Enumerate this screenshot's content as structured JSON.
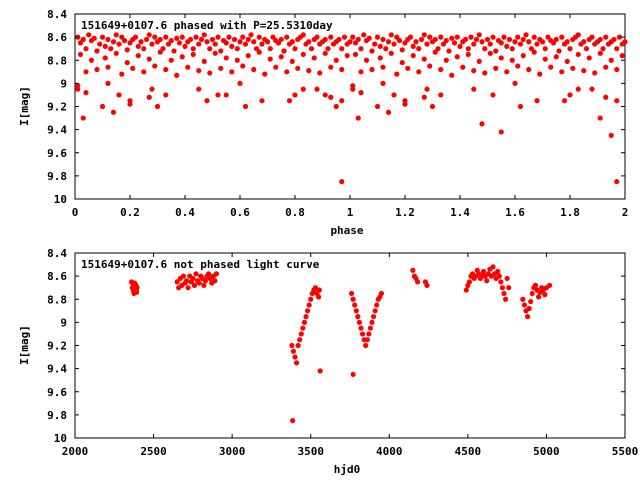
{
  "chart_data": [
    {
      "type": "scatter",
      "title": "151649+0107.6 phased with P=25.5310day",
      "xlabel": "phase",
      "ylabel": "I[mag]",
      "xlim": [
        0,
        2
      ],
      "ylim": [
        8.4,
        10
      ],
      "y_inverted": true,
      "x_ticks": [
        0,
        0.2,
        0.4,
        0.6,
        0.8,
        1,
        1.2,
        1.4,
        1.6,
        1.8,
        2
      ],
      "y_ticks": [
        8.4,
        8.6,
        8.8,
        9,
        9.2,
        9.4,
        9.6,
        9.8,
        10
      ],
      "grid": false,
      "legend": "none",
      "marker": "filled-circle",
      "color": "#ff0000",
      "series": [
        {
          "x": [
            0.01,
            0.02,
            0.03,
            0.04,
            0.05,
            0.06,
            0.07,
            0.08,
            0.09,
            0.1,
            0.11,
            0.12,
            0.13,
            0.14,
            0.15,
            0.16,
            0.17,
            0.18,
            0.19,
            0.2,
            0.21,
            0.22,
            0.23,
            0.24,
            0.25,
            0.26,
            0.27,
            0.28,
            0.29,
            0.3,
            0.31,
            0.32,
            0.33,
            0.34,
            0.35,
            0.36,
            0.37,
            0.38,
            0.39,
            0.4,
            0.41,
            0.42,
            0.43,
            0.44,
            0.45,
            0.46,
            0.47,
            0.48,
            0.49,
            0.5,
            0.51,
            0.52,
            0.53,
            0.54,
            0.55,
            0.56,
            0.57,
            0.58,
            0.59,
            0.6,
            0.61,
            0.62,
            0.63,
            0.64,
            0.65,
            0.66,
            0.67,
            0.68,
            0.69,
            0.7,
            0.71,
            0.72,
            0.73,
            0.74,
            0.75,
            0.76,
            0.77,
            0.78,
            0.79,
            0.8,
            0.81,
            0.82,
            0.83,
            0.84,
            0.85,
            0.86,
            0.87,
            0.88,
            0.89,
            0.9,
            0.91,
            0.92,
            0.93,
            0.94,
            0.95,
            0.96,
            0.97,
            0.98,
            0.99,
            1.0,
            0.02,
            0.06,
            0.11,
            0.15,
            0.19,
            0.23,
            0.27,
            0.31,
            0.35,
            0.39,
            0.43,
            0.47,
            0.51,
            0.55,
            0.59,
            0.63,
            0.67,
            0.71,
            0.75,
            0.79,
            0.83,
            0.87,
            0.91,
            0.95,
            0.99,
            0.04,
            0.08,
            0.12,
            0.17,
            0.21,
            0.25,
            0.29,
            0.33,
            0.37,
            0.41,
            0.45,
            0.49,
            0.53,
            0.57,
            0.61,
            0.65,
            0.69,
            0.73,
            0.77,
            0.81,
            0.85,
            0.89,
            0.93,
            0.97,
            0.01,
            0.03,
            0.12,
            0.16,
            0.2,
            0.28,
            0.33,
            0.45,
            0.52,
            0.6,
            0.68,
            0.8,
            0.88,
            0.93,
            0.97,
            0.01,
            0.04,
            0.1,
            0.14,
            0.2,
            0.27,
            0.3,
            0.48,
            0.55,
            0.62,
            0.78,
            0.83,
            0.91,
            0.95,
            0.97,
            1.01,
            1.02,
            1.03,
            1.04,
            1.05,
            1.06,
            1.07,
            1.08,
            1.09,
            1.1,
            1.11,
            1.12,
            1.13,
            1.14,
            1.15,
            1.16,
            1.17,
            1.18,
            1.19,
            1.2,
            1.21,
            1.22,
            1.23,
            1.24,
            1.25,
            1.26,
            1.27,
            1.28,
            1.29,
            1.3,
            1.31,
            1.32,
            1.33,
            1.34,
            1.35,
            1.36,
            1.37,
            1.38,
            1.39,
            1.4,
            1.41,
            1.42,
            1.43,
            1.44,
            1.45,
            1.46,
            1.47,
            1.48,
            1.49,
            1.5,
            1.51,
            1.52,
            1.53,
            1.54,
            1.55,
            1.56,
            1.57,
            1.58,
            1.59,
            1.6,
            1.61,
            1.62,
            1.63,
            1.64,
            1.65,
            1.66,
            1.67,
            1.68,
            1.69,
            1.7,
            1.71,
            1.72,
            1.73,
            1.74,
            1.75,
            1.76,
            1.77,
            1.78,
            1.79,
            1.8,
            1.81,
            1.82,
            1.83,
            1.84,
            1.85,
            1.86,
            1.87,
            1.88,
            1.89,
            1.9,
            1.91,
            1.92,
            1.93,
            1.94,
            1.95,
            1.96,
            1.97,
            1.98,
            1.99,
            2.0,
            1.02,
            1.06,
            1.11,
            1.15,
            1.19,
            1.23,
            1.27,
            1.31,
            1.35,
            1.39,
            1.43,
            1.47,
            1.51,
            1.55,
            1.59,
            1.63,
            1.67,
            1.71,
            1.75,
            1.79,
            1.83,
            1.87,
            1.91,
            1.95,
            1.99,
            1.04,
            1.08,
            1.12,
            1.17,
            1.21,
            1.25,
            1.29,
            1.33,
            1.37,
            1.41,
            1.45,
            1.49,
            1.53,
            1.57,
            1.61,
            1.65,
            1.69,
            1.73,
            1.77,
            1.81,
            1.85,
            1.89,
            1.93,
            1.97,
            1.01,
            1.03,
            1.12,
            1.16,
            1.2,
            1.28,
            1.33,
            1.45,
            1.52,
            1.6,
            1.68,
            1.8,
            1.88,
            1.93,
            1.97,
            1.01,
            1.04,
            1.1,
            1.14,
            1.2,
            1.27,
            1.3,
            1.48,
            1.55,
            1.62,
            1.78,
            1.83,
            1.91,
            1.95,
            1.97
          ],
          "y": [
            8.6,
            8.65,
            8.62,
            8.7,
            8.58,
            8.63,
            8.61,
            8.72,
            8.66,
            8.6,
            8.68,
            8.62,
            8.7,
            8.64,
            8.58,
            8.66,
            8.6,
            8.63,
            8.71,
            8.65,
            8.62,
            8.6,
            8.68,
            8.64,
            8.7,
            8.62,
            8.58,
            8.66,
            8.6,
            8.64,
            8.62,
            8.7,
            8.6,
            8.66,
            8.63,
            8.72,
            8.61,
            8.65,
            8.6,
            8.68,
            8.64,
            8.62,
            8.7,
            8.6,
            8.66,
            8.62,
            8.58,
            8.64,
            8.7,
            8.62,
            8.66,
            8.6,
            8.72,
            8.63,
            8.65,
            8.6,
            8.68,
            8.62,
            8.7,
            8.64,
            8.6,
            8.66,
            8.62,
            8.58,
            8.64,
            8.7,
            8.6,
            8.66,
            8.62,
            8.64,
            8.7,
            8.6,
            8.63,
            8.65,
            8.62,
            8.72,
            8.6,
            8.66,
            8.64,
            8.7,
            8.62,
            8.6,
            8.58,
            8.66,
            8.64,
            8.7,
            8.62,
            8.6,
            8.66,
            8.64,
            8.62,
            8.7,
            8.6,
            8.66,
            8.64,
            8.62,
            8.7,
            8.6,
            8.66,
            8.64,
            8.75,
            8.8,
            8.78,
            8.74,
            8.82,
            8.76,
            8.79,
            8.73,
            8.8,
            8.77,
            8.75,
            8.81,
            8.74,
            8.78,
            8.8,
            8.76,
            8.73,
            8.79,
            8.77,
            8.81,
            8.75,
            8.78,
            8.74,
            8.8,
            8.76,
            8.9,
            8.88,
            8.86,
            8.92,
            8.87,
            8.9,
            8.85,
            8.88,
            8.93,
            8.86,
            8.89,
            8.91,
            8.87,
            8.9,
            8.85,
            8.88,
            8.92,
            8.86,
            8.9,
            8.87,
            8.89,
            8.91,
            8.86,
            8.88,
            9.05,
            9.3,
            9.0,
            9.1,
            9.15,
            9.05,
            9.1,
            9.05,
            9.1,
            9.0,
            9.15,
            9.1,
            9.05,
            9.12,
            9.15,
            9.02,
            9.08,
            9.2,
            9.25,
            9.18,
            9.12,
            9.2,
            9.15,
            9.1,
            9.2,
            9.15,
            9.05,
            9.1,
            9.2,
            9.85,
            8.6,
            8.65,
            8.62,
            8.7,
            8.58,
            8.63,
            8.61,
            8.72,
            8.66,
            8.6,
            8.68,
            8.62,
            8.7,
            8.64,
            8.58,
            8.66,
            8.6,
            8.63,
            8.71,
            8.65,
            8.62,
            8.6,
            8.68,
            8.64,
            8.7,
            8.62,
            8.58,
            8.66,
            8.6,
            8.64,
            8.62,
            8.7,
            8.6,
            8.66,
            8.63,
            8.72,
            8.61,
            8.65,
            8.6,
            8.68,
            8.64,
            8.62,
            8.7,
            8.6,
            8.66,
            8.62,
            8.58,
            8.64,
            8.7,
            8.62,
            8.66,
            8.6,
            8.72,
            8.63,
            8.65,
            8.6,
            8.68,
            8.62,
            8.7,
            8.64,
            8.6,
            8.66,
            8.62,
            8.58,
            8.64,
            8.7,
            8.6,
            8.66,
            8.62,
            8.64,
            8.7,
            8.6,
            8.63,
            8.65,
            8.62,
            8.72,
            8.6,
            8.66,
            8.64,
            8.7,
            8.62,
            8.6,
            8.58,
            8.66,
            8.64,
            8.7,
            8.62,
            8.6,
            8.66,
            8.64,
            8.62,
            8.7,
            8.6,
            8.66,
            8.64,
            8.62,
            8.7,
            8.6,
            8.66,
            8.64,
            8.75,
            8.8,
            8.78,
            8.74,
            8.82,
            8.76,
            8.79,
            8.73,
            8.8,
            8.77,
            8.75,
            8.81,
            8.74,
            8.78,
            8.8,
            8.76,
            8.73,
            8.79,
            8.77,
            8.81,
            8.75,
            8.78,
            8.74,
            8.8,
            8.76,
            8.9,
            8.88,
            8.86,
            8.92,
            8.87,
            8.9,
            8.85,
            8.88,
            8.93,
            8.86,
            8.89,
            8.91,
            8.87,
            8.9,
            8.85,
            8.88,
            8.92,
            8.86,
            8.9,
            8.87,
            8.89,
            8.91,
            8.86,
            8.88,
            9.05,
            9.3,
            9.0,
            9.1,
            9.15,
            9.05,
            9.1,
            9.05,
            9.1,
            9.0,
            9.15,
            9.1,
            9.05,
            9.12,
            9.15,
            9.02,
            9.08,
            9.2,
            9.25,
            9.18,
            9.12,
            9.2,
            9.35,
            9.42,
            9.2,
            9.15,
            9.05,
            9.3,
            9.45,
            9.85
          ]
        }
      ]
    },
    {
      "type": "scatter",
      "title": "151649+0107.6 not phased light curve",
      "xlabel": "hjd0",
      "ylabel": "I[mag]",
      "xlim": [
        2000,
        5500
      ],
      "ylim": [
        8.4,
        10
      ],
      "y_inverted": true,
      "x_ticks": [
        2000,
        2500,
        3000,
        3500,
        4000,
        4500,
        5000,
        5500
      ],
      "y_ticks": [
        8.4,
        8.6,
        8.8,
        9,
        9.2,
        9.4,
        9.6,
        9.8,
        10
      ],
      "grid": false,
      "legend": "none",
      "marker": "filled-circle",
      "color": "#ff0000",
      "series": [
        {
          "x": [
            2360,
            2365,
            2370,
            2372,
            2375,
            2378,
            2380,
            2382,
            2385,
            2388,
            2390,
            2392,
            2395,
            2650,
            2660,
            2670,
            2680,
            2690,
            2700,
            2710,
            2720,
            2730,
            2740,
            2750,
            2760,
            2770,
            2780,
            2790,
            2800,
            2810,
            2820,
            2830,
            2840,
            2850,
            2860,
            2870,
            2880,
            2890,
            2900,
            3380,
            3390,
            3400,
            3410,
            3420,
            3430,
            3440,
            3450,
            3460,
            3470,
            3480,
            3490,
            3500,
            3510,
            3520,
            3530,
            3540,
            3550,
            3555,
            3385,
            3560,
            3760,
            3770,
            3780,
            3790,
            3800,
            3810,
            3820,
            3830,
            3840,
            3850,
            3860,
            3870,
            3880,
            3890,
            3900,
            3910,
            3920,
            3930,
            3940,
            3950,
            3770,
            4150,
            4160,
            4170,
            4180,
            4230,
            4240,
            4490,
            4500,
            4510,
            4520,
            4530,
            4540,
            4550,
            4560,
            4570,
            4580,
            4590,
            4600,
            4610,
            4620,
            4630,
            4640,
            4650,
            4660,
            4670,
            4680,
            4690,
            4700,
            4710,
            4720,
            4730,
            4740,
            4750,
            4760,
            4850,
            4860,
            4870,
            4880,
            4890,
            4900,
            4910,
            4920,
            4930,
            4940,
            4950,
            4960,
            4970,
            4980,
            4990,
            5000,
            5020
          ],
          "y": [
            8.65,
            8.7,
            8.72,
            8.68,
            8.75,
            8.7,
            8.66,
            8.73,
            8.7,
            8.68,
            8.72,
            8.74,
            8.7,
            8.65,
            8.7,
            8.62,
            8.68,
            8.6,
            8.66,
            8.64,
            8.7,
            8.6,
            8.65,
            8.62,
            8.68,
            8.58,
            8.64,
            8.66,
            8.6,
            8.62,
            8.68,
            8.64,
            8.6,
            8.58,
            8.62,
            8.66,
            8.6,
            8.64,
            8.58,
            9.2,
            9.25,
            9.3,
            9.35,
            9.2,
            9.15,
            9.1,
            9.05,
            9.0,
            8.95,
            8.9,
            8.85,
            8.8,
            8.75,
            8.72,
            8.7,
            8.75,
            8.78,
            8.72,
            9.85,
            9.42,
            8.75,
            8.8,
            8.85,
            8.9,
            8.95,
            9.0,
            9.05,
            9.1,
            9.15,
            9.2,
            9.15,
            9.1,
            9.05,
            9.0,
            8.95,
            8.9,
            8.85,
            8.8,
            8.78,
            8.75,
            9.45,
            8.55,
            8.6,
            8.62,
            8.65,
            8.65,
            8.68,
            8.72,
            8.68,
            8.65,
            8.6,
            8.58,
            8.62,
            8.6,
            8.55,
            8.58,
            8.62,
            8.6,
            8.56,
            8.6,
            8.64,
            8.58,
            8.54,
            8.6,
            8.52,
            8.58,
            8.62,
            8.56,
            8.6,
            8.65,
            8.7,
            8.75,
            8.8,
            8.62,
            8.7,
            8.8,
            8.85,
            8.9,
            8.95,
            8.88,
            8.82,
            8.75,
            8.7,
            8.68,
            8.72,
            8.78,
            8.74,
            8.7,
            8.72,
            8.76,
            8.7,
            8.68
          ]
        }
      ]
    }
  ]
}
